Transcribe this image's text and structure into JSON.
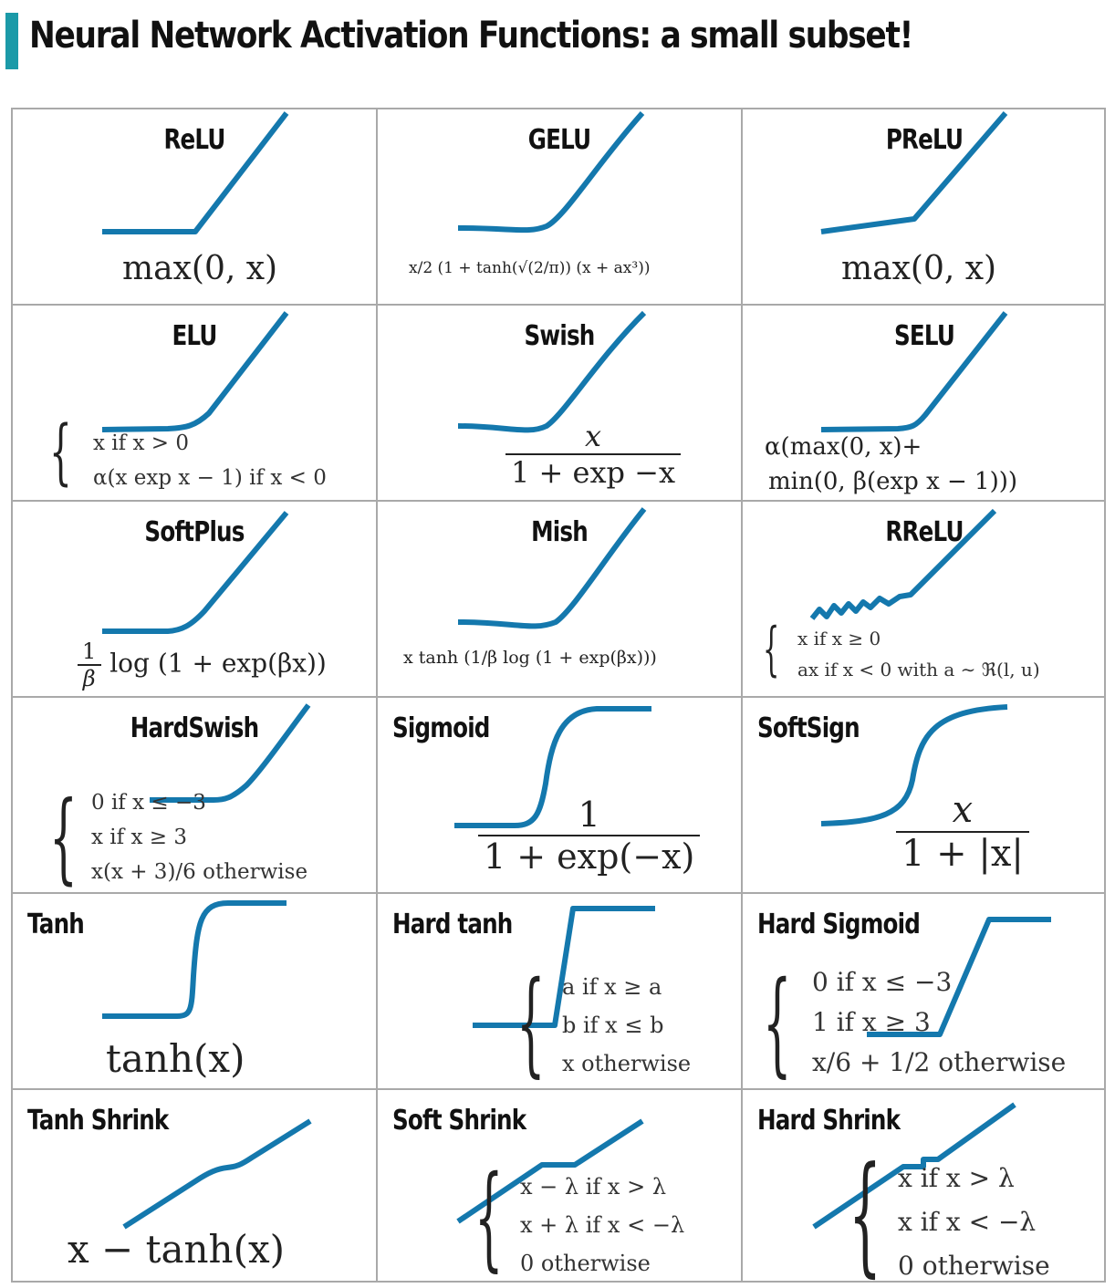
{
  "page": {
    "title": "Neural Network Activation Functions: a small subset!",
    "accent_color": "#1b9aa8",
    "curve_color": "#1478ad"
  },
  "cells": [
    {
      "name": "ReLU",
      "formula": "max(0, x)"
    },
    {
      "name": "GELU",
      "formula": "x/2 (1 + tanh(√(2/π)) (x + ax³))"
    },
    {
      "name": "PReLU",
      "formula": "max(0, x)"
    },
    {
      "name": "ELU",
      "cases": [
        "x if x > 0",
        "α(x exp x − 1) if x < 0"
      ]
    },
    {
      "name": "Swish",
      "formula_num": "x",
      "formula_den": "1 + exp −x"
    },
    {
      "name": "SELU",
      "formula_lines": [
        "α(max(0, x)+",
        "min(0, β(exp x − 1)))"
      ]
    },
    {
      "name": "SoftPlus",
      "formula_num": "1",
      "formula_den": "β",
      "formula_rest": "log (1 + exp(βx))"
    },
    {
      "name": "Mish",
      "formula": "x tanh (1/β log (1 + exp(βx)))"
    },
    {
      "name": "RReLU",
      "cases": [
        "x if x ≥ 0",
        "ax if x < 0 with a ∼ ℜ(l, u)"
      ]
    },
    {
      "name": "HardSwish",
      "cases": [
        "0 if x ≤ −3",
        "x if x ≥ 3",
        "x(x + 3)/6 otherwise"
      ]
    },
    {
      "name": "Sigmoid",
      "formula_num": "1",
      "formula_den": "1 + exp(−x)"
    },
    {
      "name": "SoftSign",
      "formula_num": "x",
      "formula_den": "1 + |x|"
    },
    {
      "name": "Tanh",
      "formula": "tanh(x)"
    },
    {
      "name": "Hard tanh",
      "cases": [
        "a if x ≥ a",
        "b if x ≤ b",
        "x otherwise"
      ]
    },
    {
      "name": "Hard Sigmoid",
      "cases": [
        "0 if x ≤ −3",
        "1 if x ≥ 3",
        "x/6 + 1/2 otherwise"
      ]
    },
    {
      "name": "Tanh Shrink",
      "formula": "x − tanh(x)"
    },
    {
      "name": "Soft Shrink",
      "cases": [
        "x − λ if x > λ",
        "x + λ if x < −λ",
        "0 otherwise"
      ]
    },
    {
      "name": "Hard Shrink",
      "cases": [
        "x if x > λ",
        "x if x < −λ",
        "0 otherwise"
      ]
    }
  ]
}
